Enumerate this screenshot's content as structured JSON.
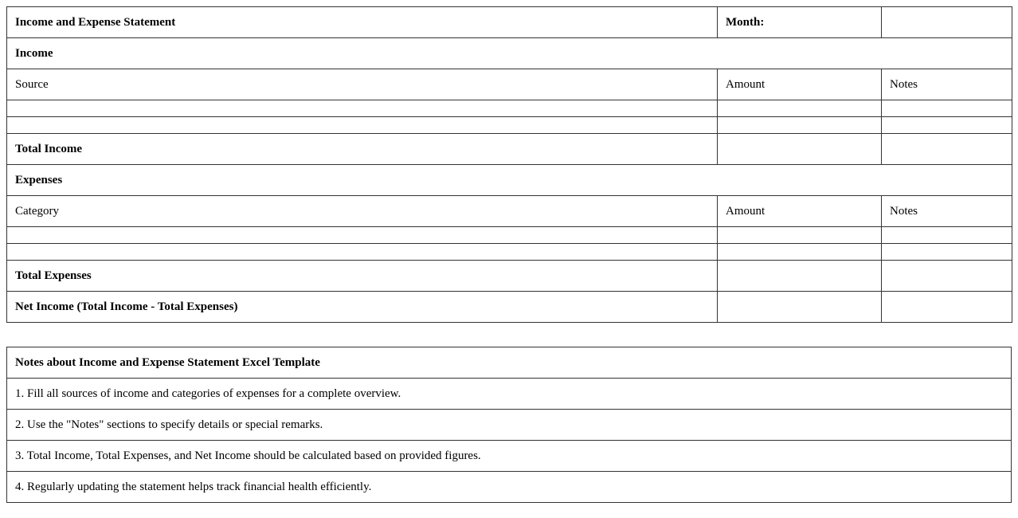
{
  "statement": {
    "title": "Income and Expense Statement",
    "month_label": "Month:",
    "month_value": "",
    "income": {
      "heading": "Income",
      "columns": [
        "Source",
        "Amount",
        "Notes"
      ],
      "total_label": "Total Income"
    },
    "expenses": {
      "heading": "Expenses",
      "columns": [
        "Category",
        "Amount",
        "Notes"
      ],
      "total_label": "Total Expenses"
    },
    "net_label": "Net Income (Total Income - Total Expenses)"
  },
  "notes": {
    "heading": "Notes about Income and Expense Statement Excel Template",
    "items": [
      "1. Fill all sources of income and categories of expenses for a complete overview.",
      "2. Use the \"Notes\" sections to specify details or special remarks.",
      "3. Total Income, Total Expenses, and Net Income should be calculated based on provided figures.",
      "4. Regularly updating the statement helps track financial health efficiently."
    ]
  }
}
